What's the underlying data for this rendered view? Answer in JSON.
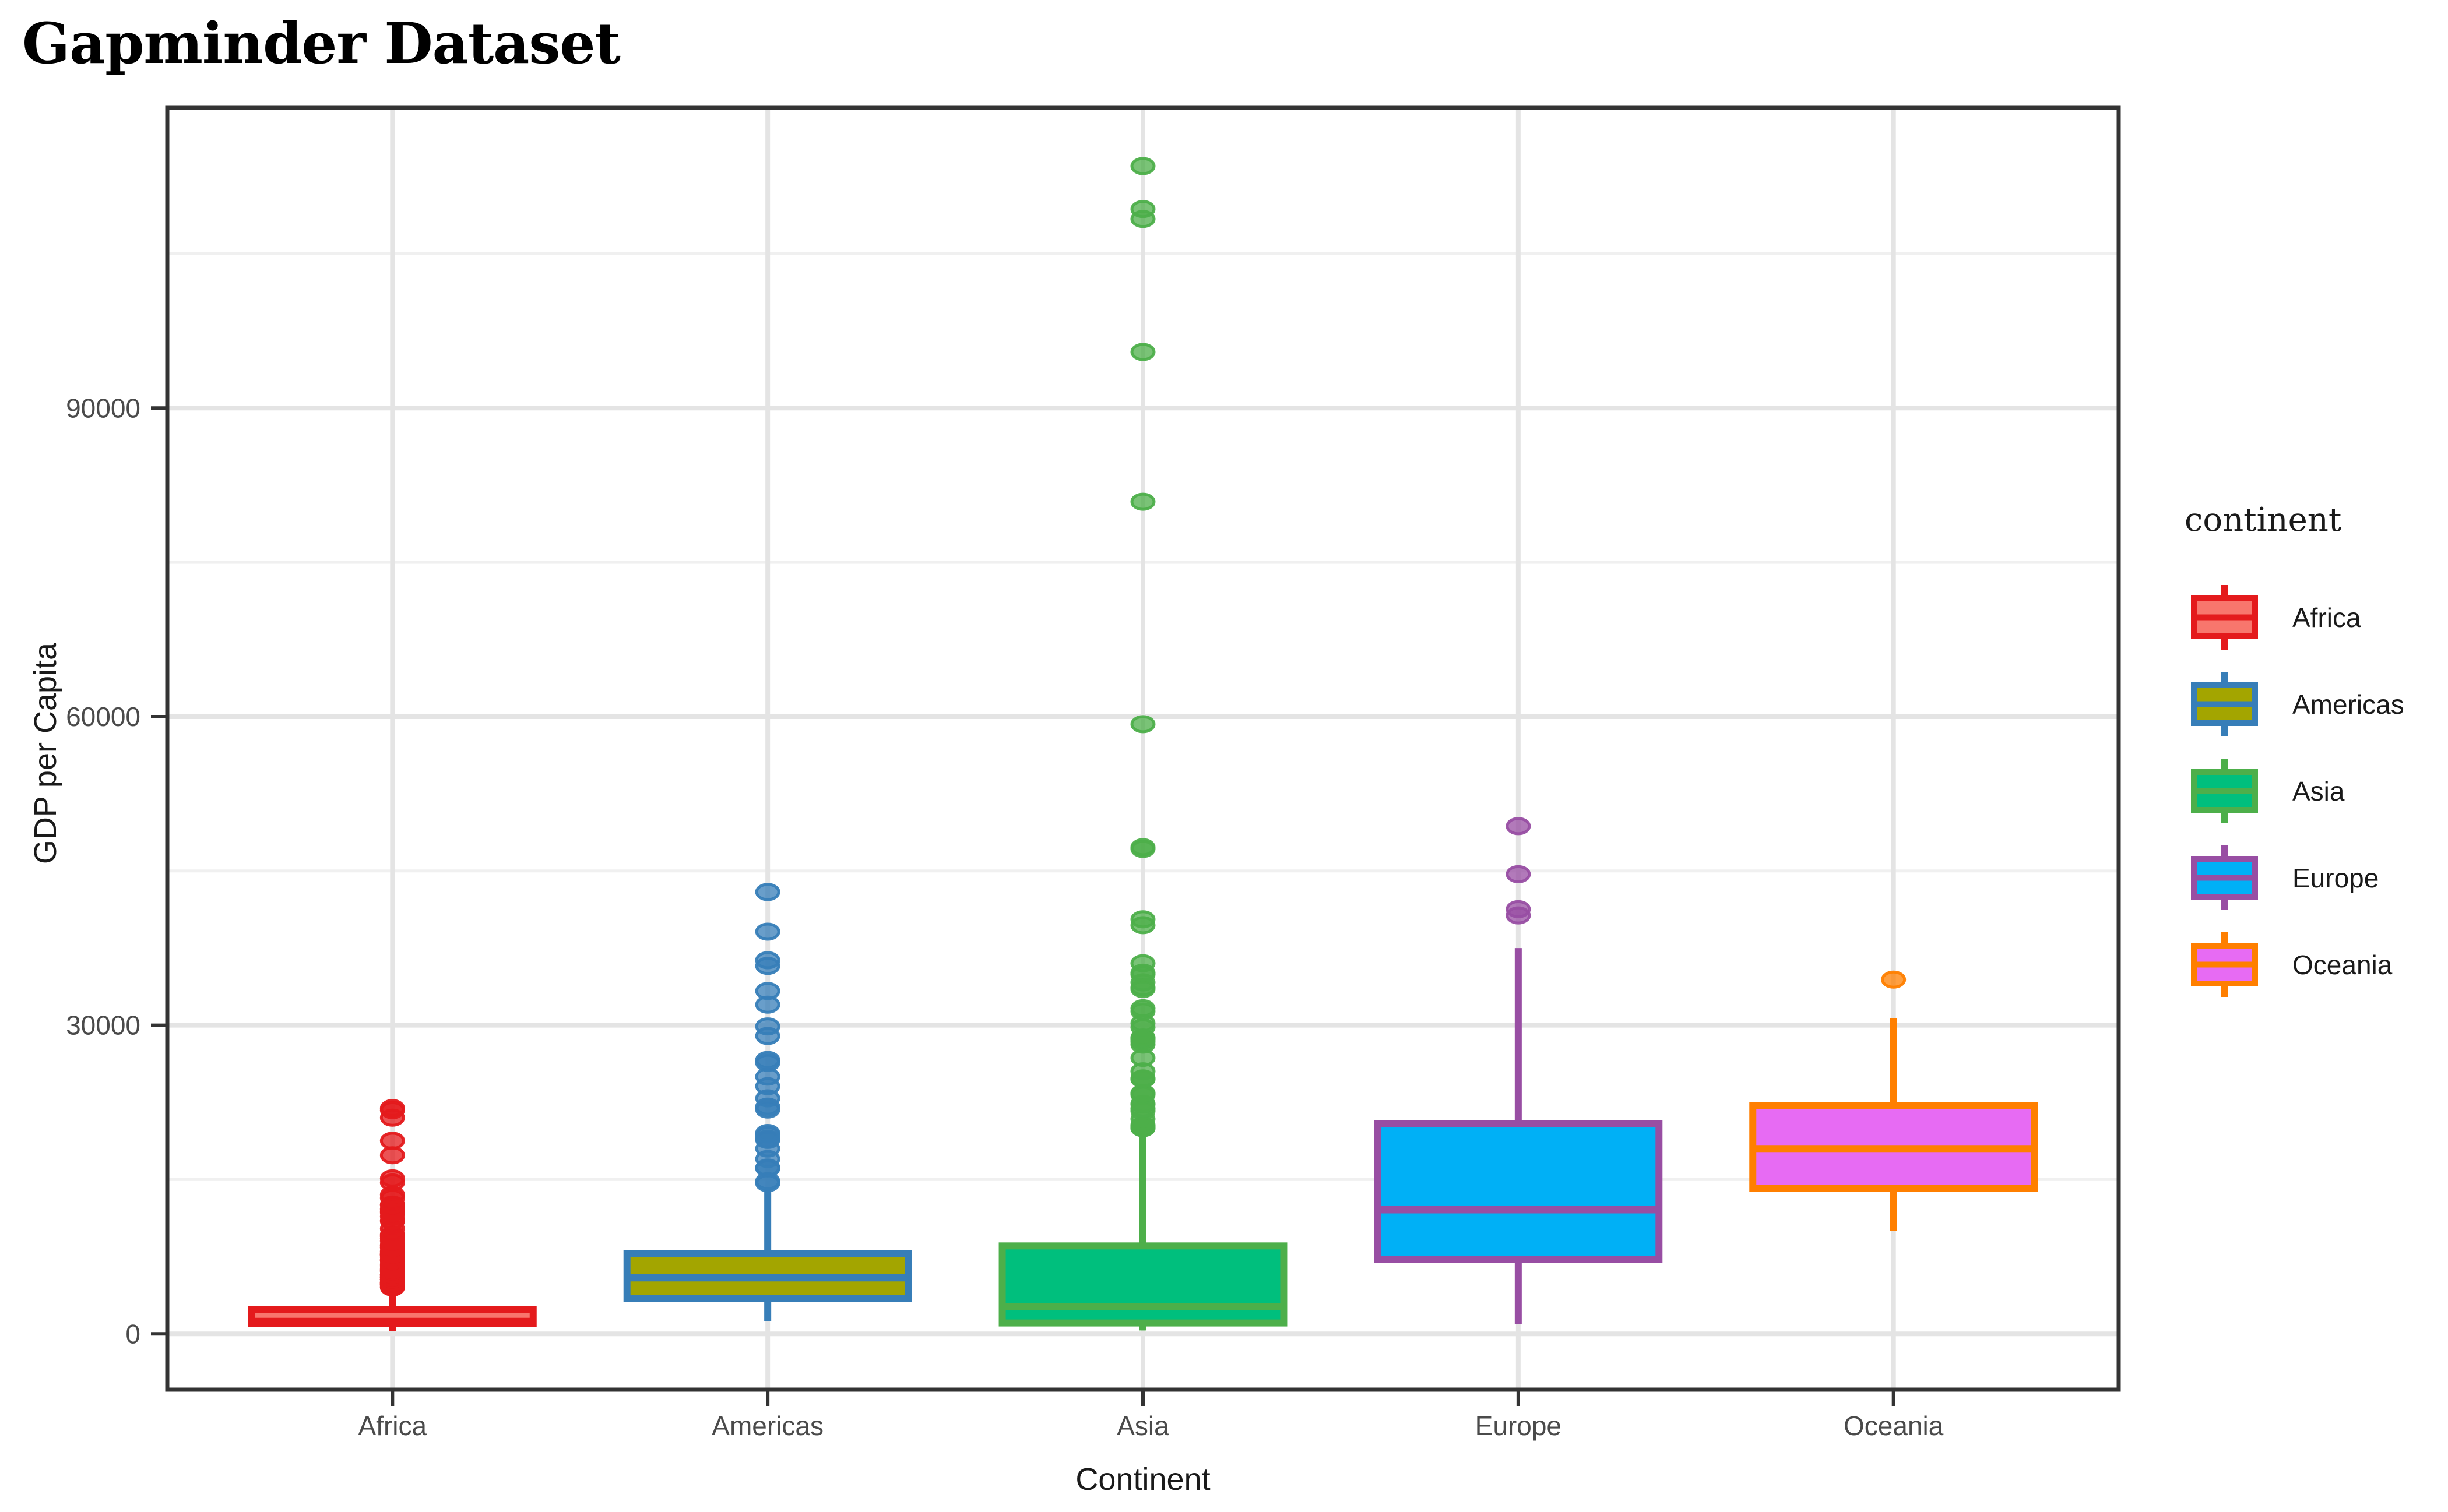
{
  "title": "Gapminder Dataset",
  "legend": {
    "title": "continent",
    "items": [
      {
        "label": "Africa"
      },
      {
        "label": "Americas"
      },
      {
        "label": "Asia"
      },
      {
        "label": "Europe"
      },
      {
        "label": "Oceania"
      }
    ]
  },
  "chart_data": {
    "type": "boxplot",
    "title": "Gapminder Dataset",
    "xlabel": "Continent",
    "ylabel": "GDP per Capita",
    "categories": [
      "Africa",
      "Americas",
      "Asia",
      "Europe",
      "Oceania"
    ],
    "y_ticks": [
      0,
      30000,
      60000,
      90000
    ],
    "y_minor_ticks": [
      15000,
      45000,
      75000,
      105000
    ],
    "ylim": [
      -5423,
      119187
    ],
    "grid": true,
    "legend_position": "right",
    "style": {
      "background": "#FFFFFF",
      "panel_border": "#333333",
      "grid_major": "#E4E4E4",
      "grid_minor": "#F0F0F0",
      "tick_mark": "#333333",
      "tick_label_color": "#4a4a4a",
      "axis_title_color": "#1a1a1a",
      "title_color": "#000000"
    },
    "series": [
      {
        "name": "Africa",
        "fill": "#F8766D",
        "stroke": "#E41A1C",
        "q1": 986,
        "median": 1192,
        "q3": 2377,
        "whisker_low": 241,
        "whisker_high": 4294,
        "outliers": [
          4513,
          4551,
          4615,
          4725,
          4755,
          4797,
          4804,
          4862,
          4876,
          4910,
          4957,
          4976,
          5023,
          5030,
          5267,
          5283,
          5288,
          5303,
          5473,
          5487,
          5523,
          5581,
          5681,
          5723,
          5745,
          5769,
          6072,
          6101,
          6206,
          6223,
          6316,
          6504,
          6632,
          6757,
          7093,
          7114,
          7225,
          7479,
          7670,
          7704,
          7711,
          7766,
          7826,
          7954,
          8029,
          8359,
          8423,
          8568,
          8647,
          9022,
          9270,
          9467,
          9535,
          9640,
          10207,
          10957,
          11004,
          11402,
          11771,
          11865,
          12058,
          12154,
          12522,
          12570,
          13206,
          13522,
          14723,
          15113,
          17364,
          18773,
          21011,
          21746,
          21951
        ]
      },
      {
        "name": "Americas",
        "fill": "#A3A500",
        "stroke": "#377EB8",
        "q1": 3428,
        "median": 5465,
        "q3": 7830,
        "whisker_low": 1202,
        "whisker_high": 13990,
        "outliers": [
          14642,
          14847,
          16077,
          16173,
          16999,
          18009,
          18856,
          18971,
          19328,
          19530,
          21806,
          22091,
          22899,
          24073,
          25009,
          26343,
          26627,
          28955,
          29884,
          32004,
          33329,
          35767,
          36319,
          39097,
          42952
        ]
      },
      {
        "name": "Asia",
        "fill": "#00BF7D",
        "stroke": "#4DAF4A",
        "q1": 1057,
        "median": 2647,
        "q3": 8549,
        "whisker_low": 331,
        "whisker_high": 19784,
        "outliers": [
          19998,
          20004,
          20038,
          20207,
          20292,
          20897,
          21655,
          21905,
          22316,
          22376,
          23235,
          23348,
          23404,
          24758,
          24770,
          24837,
          25523,
          26825,
          28118,
          28378,
          28605,
          28717,
          28816,
          29796,
          30209,
          31354,
          31656,
          33519,
          33693,
          34167,
          34933,
          35110,
          36023,
          39725,
          40301,
          47143,
          47307,
          59265,
          80894,
          95458,
          108382,
          109348,
          113523
        ]
      },
      {
        "name": "Europe",
        "fill": "#00B0F6",
        "stroke": "#984EA3",
        "q1": 7213,
        "median": 12082,
        "q3": 20461,
        "whisker_low": 973,
        "whisker_high": 37506,
        "outliers": [
          40676,
          41283,
          44684,
          49357
        ]
      },
      {
        "name": "Oceania",
        "fill": "#E76BF3",
        "stroke": "#FF7F00",
        "q1": 14142,
        "median": 17983,
        "q3": 22214,
        "whisker_low": 10040,
        "whisker_high": 30688,
        "outliers": [
          34435
        ]
      }
    ]
  }
}
